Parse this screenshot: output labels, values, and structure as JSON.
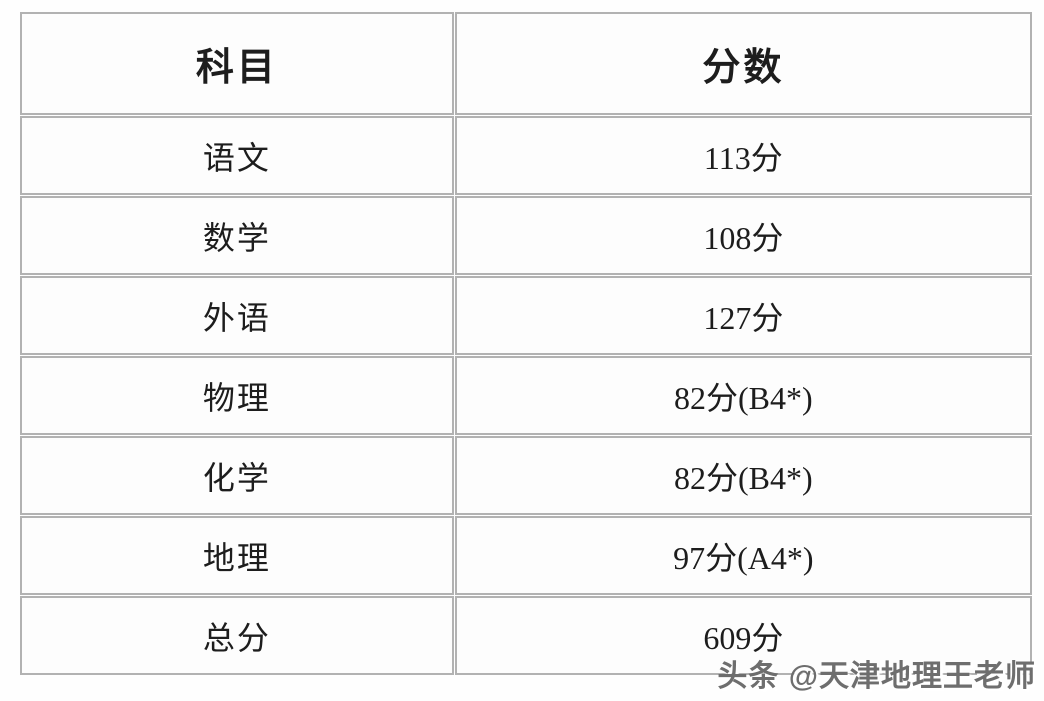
{
  "table": {
    "columns": [
      {
        "label": "科目"
      },
      {
        "label": "分数"
      }
    ],
    "rows": [
      {
        "subject": "语文",
        "score": "113分"
      },
      {
        "subject": "数学",
        "score": "108分"
      },
      {
        "subject": "外语",
        "score": "127分"
      },
      {
        "subject": "物理",
        "score": "82分(B4*)"
      },
      {
        "subject": "化学",
        "score": "82分(B4*)"
      },
      {
        "subject": "地理",
        "score": "97分(A4*)"
      },
      {
        "subject": "总分",
        "score": "609分"
      }
    ]
  },
  "watermark": {
    "text": "头条 @天津地理王老师"
  },
  "colors": {
    "border": "#b2b2b2",
    "text": "#1d1d1d",
    "watermark_text": "#6e6e6e",
    "background": "#fefefe"
  }
}
